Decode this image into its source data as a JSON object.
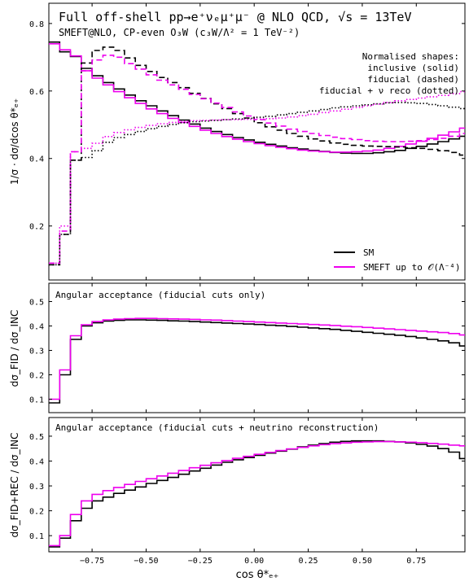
{
  "figure": {
    "title": "Full off-shell pp→e⁺νₑμ⁺μ⁻ @ NLO QCD, √s = 13TeV",
    "subtitle": "SMEFT@NLO, CP-even O₃W (c₃W/Λ² = 1 TeV⁻²)",
    "xlabel": "cos θ*ₑ₊",
    "colors": {
      "SM": "#000000",
      "SMEFT": "#ee00ee"
    }
  },
  "chart_data": [
    {
      "type": "line",
      "panel": "top",
      "ylabel": "1/σ · dσ/dcos θ*ₑ₊",
      "ylim": [
        0.04,
        0.86
      ],
      "xlim": [
        -0.95,
        0.975
      ],
      "yticks": [
        "0.2",
        "0.4",
        "0.6",
        "0.8"
      ],
      "note": [
        "Normalised shapes:",
        "inclusive (solid)",
        "fiducial (dashed)",
        "fiducial + ν reco (dotted)"
      ],
      "legend": [
        "SM",
        "SMEFT up to 𝒪(Λ⁻⁴)"
      ],
      "legend_position": "lower-right",
      "bin_edges": [
        -0.95,
        -0.9,
        -0.85,
        -0.8,
        -0.75,
        -0.7,
        -0.65,
        -0.6,
        -0.55,
        -0.5,
        -0.45,
        -0.4,
        -0.35,
        -0.3,
        -0.25,
        -0.2,
        -0.15,
        -0.1,
        -0.05,
        0.0,
        0.05,
        0.1,
        0.15,
        0.2,
        0.25,
        0.3,
        0.35,
        0.4,
        0.45,
        0.5,
        0.55,
        0.6,
        0.65,
        0.7,
        0.75,
        0.8,
        0.85,
        0.9,
        0.95,
        0.975
      ],
      "series": [
        {
          "name": "SM",
          "style": "solid",
          "color": "#000000",
          "values": [
            0.745,
            0.716,
            0.702,
            0.667,
            0.645,
            0.625,
            0.606,
            0.588,
            0.571,
            0.556,
            0.541,
            0.527,
            0.514,
            0.502,
            0.49,
            0.48,
            0.471,
            0.462,
            0.455,
            0.448,
            0.442,
            0.437,
            0.432,
            0.428,
            0.424,
            0.421,
            0.418,
            0.416,
            0.415,
            0.415,
            0.417,
            0.42,
            0.424,
            0.43,
            0.436,
            0.443,
            0.45,
            0.458,
            0.466
          ]
        },
        {
          "name": "SMEFT",
          "style": "solid",
          "color": "#ee00ee",
          "values": [
            0.74,
            0.722,
            0.704,
            0.66,
            0.638,
            0.618,
            0.598,
            0.58,
            0.563,
            0.547,
            0.533,
            0.519,
            0.507,
            0.495,
            0.484,
            0.474,
            0.465,
            0.457,
            0.45,
            0.444,
            0.438,
            0.433,
            0.429,
            0.425,
            0.422,
            0.42,
            0.419,
            0.419,
            0.42,
            0.422,
            0.425,
            0.43,
            0.436,
            0.443,
            0.451,
            0.46,
            0.469,
            0.479,
            0.49
          ]
        },
        {
          "name": "SM",
          "style": "dashed",
          "color": "#000000",
          "values": [
            0.085,
            0.175,
            0.395,
            0.683,
            0.72,
            0.73,
            0.72,
            0.698,
            0.676,
            0.658,
            0.64,
            0.625,
            0.61,
            0.593,
            0.578,
            0.562,
            0.548,
            0.533,
            0.52,
            0.506,
            0.494,
            0.484,
            0.474,
            0.466,
            0.458,
            0.452,
            0.446,
            0.442,
            0.439,
            0.437,
            0.436,
            0.435,
            0.434,
            0.432,
            0.43,
            0.427,
            0.423,
            0.418,
            0.41
          ]
        },
        {
          "name": "SMEFT",
          "style": "dashed",
          "color": "#ee00ee",
          "values": [
            0.09,
            0.185,
            0.42,
            0.66,
            0.692,
            0.706,
            0.7,
            0.681,
            0.665,
            0.648,
            0.632,
            0.618,
            0.605,
            0.59,
            0.577,
            0.564,
            0.551,
            0.538,
            0.526,
            0.515,
            0.505,
            0.496,
            0.487,
            0.48,
            0.474,
            0.468,
            0.463,
            0.459,
            0.456,
            0.453,
            0.451,
            0.45,
            0.45,
            0.451,
            0.453,
            0.456,
            0.46,
            0.466,
            0.474
          ]
        },
        {
          "name": "SM",
          "style": "dotted",
          "color": "#000000",
          "values": [
            0.085,
            0.175,
            0.395,
            0.403,
            0.423,
            0.448,
            0.462,
            0.471,
            0.48,
            0.488,
            0.495,
            0.501,
            0.506,
            0.509,
            0.511,
            0.513,
            0.515,
            0.517,
            0.519,
            0.522,
            0.525,
            0.529,
            0.533,
            0.537,
            0.541,
            0.545,
            0.55,
            0.553,
            0.556,
            0.559,
            0.562,
            0.565,
            0.566,
            0.565,
            0.563,
            0.56,
            0.556,
            0.552,
            0.548
          ]
        },
        {
          "name": "SMEFT",
          "style": "dotted",
          "color": "#ee00ee",
          "values": [
            0.09,
            0.2,
            0.42,
            0.43,
            0.445,
            0.465,
            0.477,
            0.485,
            0.492,
            0.498,
            0.503,
            0.507,
            0.51,
            0.512,
            0.513,
            0.514,
            0.515,
            0.515,
            0.516,
            0.517,
            0.518,
            0.52,
            0.523,
            0.527,
            0.531,
            0.536,
            0.541,
            0.546,
            0.551,
            0.556,
            0.561,
            0.566,
            0.571,
            0.575,
            0.579,
            0.583,
            0.587,
            0.592,
            0.598
          ]
        }
      ]
    },
    {
      "type": "line",
      "panel": "middle",
      "annotation": "Angular acceptance (fiducial cuts only)",
      "ylabel": "dσ_FID / dσ_INC",
      "ylim": [
        0.045,
        0.575
      ],
      "xlim": [
        -0.95,
        0.975
      ],
      "yticks": [
        "0.1",
        "0.2",
        "0.3",
        "0.4",
        "0.5"
      ],
      "bin_edges": [
        -0.95,
        -0.9,
        -0.85,
        -0.8,
        -0.75,
        -0.7,
        -0.65,
        -0.6,
        -0.55,
        -0.5,
        -0.45,
        -0.4,
        -0.35,
        -0.3,
        -0.25,
        -0.2,
        -0.15,
        -0.1,
        -0.05,
        0.0,
        0.05,
        0.1,
        0.15,
        0.2,
        0.25,
        0.3,
        0.35,
        0.4,
        0.45,
        0.5,
        0.55,
        0.6,
        0.65,
        0.7,
        0.75,
        0.8,
        0.85,
        0.9,
        0.95,
        0.975
      ],
      "series": [
        {
          "name": "SM",
          "color": "#000000",
          "values": [
            0.085,
            0.2,
            0.345,
            0.4,
            0.413,
            0.42,
            0.423,
            0.425,
            0.425,
            0.424,
            0.423,
            0.421,
            0.42,
            0.418,
            0.416,
            0.414,
            0.412,
            0.41,
            0.408,
            0.406,
            0.403,
            0.401,
            0.398,
            0.395,
            0.392,
            0.389,
            0.386,
            0.382,
            0.378,
            0.374,
            0.37,
            0.366,
            0.362,
            0.357,
            0.351,
            0.345,
            0.339,
            0.331,
            0.318
          ]
        },
        {
          "name": "SMEFT",
          "color": "#ee00ee",
          "values": [
            0.1,
            0.22,
            0.36,
            0.405,
            0.418,
            0.425,
            0.428,
            0.43,
            0.431,
            0.431,
            0.43,
            0.429,
            0.428,
            0.427,
            0.425,
            0.424,
            0.422,
            0.42,
            0.418,
            0.416,
            0.414,
            0.412,
            0.41,
            0.408,
            0.406,
            0.404,
            0.402,
            0.399,
            0.397,
            0.394,
            0.391,
            0.388,
            0.385,
            0.382,
            0.379,
            0.376,
            0.373,
            0.369,
            0.363
          ]
        }
      ]
    },
    {
      "type": "line",
      "panel": "bottom",
      "annotation": "Angular acceptance (fiducial cuts + neutrino reconstruction)",
      "ylabel": "dσ_FID+REC / dσ_INC",
      "ylim": [
        0.035,
        0.575
      ],
      "xlim": [
        -0.95,
        0.975
      ],
      "xticks": [
        "−0.75",
        "−0.50",
        "−0.25",
        "0.00",
        "0.25",
        "0.50",
        "0.75"
      ],
      "yticks": [
        "0.1",
        "0.2",
        "0.3",
        "0.4",
        "0.5"
      ],
      "bin_edges": [
        -0.95,
        -0.9,
        -0.85,
        -0.8,
        -0.75,
        -0.7,
        -0.65,
        -0.6,
        -0.55,
        -0.5,
        -0.45,
        -0.4,
        -0.35,
        -0.3,
        -0.25,
        -0.2,
        -0.15,
        -0.1,
        -0.05,
        0.0,
        0.05,
        0.1,
        0.15,
        0.2,
        0.25,
        0.3,
        0.35,
        0.4,
        0.45,
        0.5,
        0.55,
        0.6,
        0.65,
        0.7,
        0.75,
        0.8,
        0.85,
        0.9,
        0.95,
        0.975
      ],
      "series": [
        {
          "name": "SM",
          "color": "#000000",
          "values": [
            0.055,
            0.09,
            0.16,
            0.21,
            0.24,
            0.255,
            0.27,
            0.283,
            0.296,
            0.31,
            0.322,
            0.334,
            0.347,
            0.36,
            0.371,
            0.384,
            0.395,
            0.405,
            0.414,
            0.423,
            0.432,
            0.44,
            0.448,
            0.457,
            0.464,
            0.47,
            0.476,
            0.479,
            0.481,
            0.481,
            0.481,
            0.479,
            0.477,
            0.473,
            0.467,
            0.46,
            0.45,
            0.436,
            0.41
          ]
        },
        {
          "name": "SMEFT",
          "color": "#ee00ee",
          "values": [
            0.06,
            0.1,
            0.185,
            0.24,
            0.266,
            0.281,
            0.294,
            0.306,
            0.318,
            0.329,
            0.34,
            0.351,
            0.362,
            0.373,
            0.383,
            0.393,
            0.402,
            0.411,
            0.419,
            0.427,
            0.435,
            0.442,
            0.449,
            0.455,
            0.461,
            0.466,
            0.47,
            0.473,
            0.476,
            0.477,
            0.478,
            0.478,
            0.477,
            0.476,
            0.474,
            0.471,
            0.468,
            0.464,
            0.461
          ]
        }
      ]
    }
  ]
}
